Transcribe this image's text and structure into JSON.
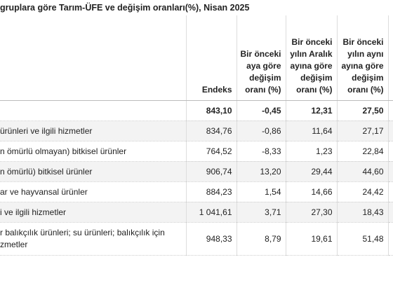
{
  "header": {
    "title": "gruplara göre Tarım-ÜFE ve değişim oranları(%), Nisan 2025"
  },
  "table": {
    "columns": [
      "Endeks",
      "Bir önceki aya göre değişim oranı (%)",
      "Bir önceki yılın Aralık ayına göre değişim oranı (%)",
      "Bir önceki yılın aynı ayına göre değişim oranı (%)"
    ],
    "rows": [
      {
        "values": [
          "843,10",
          "-0,45",
          "12,31",
          "27,50"
        ]
      },
      {
        "label": "ürünleri ve ilgili hizmetler",
        "values": [
          "834,76",
          "-0,86",
          "11,64",
          "27,17"
        ]
      },
      {
        "label": "n ömürlü olmayan) bitkisel ürünler",
        "values": [
          "764,52",
          "-8,33",
          "1,23",
          "22,84"
        ]
      },
      {
        "label": "n ömürlü) bitkisel ürünler",
        "values": [
          "906,74",
          "13,20",
          "29,44",
          "44,60"
        ]
      },
      {
        "label": "ar ve hayvansal ürünler",
        "values": [
          "884,23",
          "1,54",
          "14,66",
          "24,42"
        ]
      },
      {
        "label": "i ve ilgili hizmetler",
        "values": [
          "1 041,61",
          "3,71",
          "27,30",
          "18,43"
        ]
      },
      {
        "label": "r balıkçılık ürünleri; su ürünleri; balıkçılık için zmetler",
        "values": [
          "948,33",
          "8,79",
          "19,61",
          "51,48"
        ]
      }
    ]
  }
}
